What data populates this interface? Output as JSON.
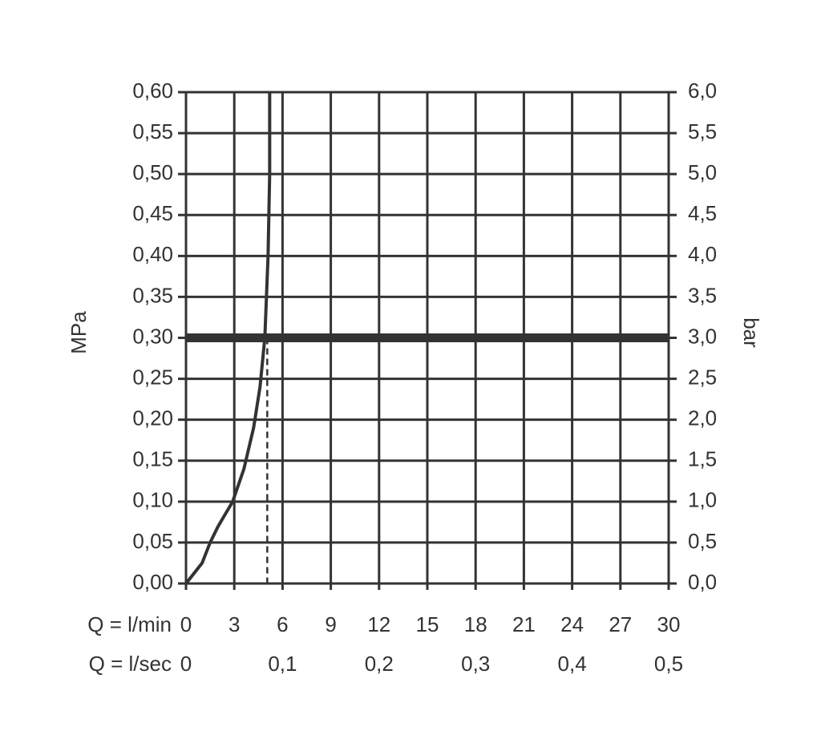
{
  "chart_data": {
    "type": "line",
    "x_label": "Q = l/min",
    "x2_label": "Q = l/sec",
    "y_label": "MPa",
    "y2_label": "bar",
    "x": [
      0,
      1,
      1.5,
      2,
      2.9,
      3.6,
      4.2,
      4.6,
      4.9,
      5.1,
      5.2,
      5.2
    ],
    "values": [
      0,
      0.025,
      0.05,
      0.07,
      0.1,
      0.14,
      0.19,
      0.24,
      0.3,
      0.4,
      0.5,
      0.6
    ],
    "color": "#333333",
    "reference_line": 0.3,
    "dashed_line": {
      "x": 5.05,
      "y": 0.3
    },
    "xlim": [
      0,
      30
    ],
    "xticks": [
      0,
      3,
      6,
      9,
      12,
      15,
      18,
      21,
      24,
      27,
      30
    ],
    "x2lim": [
      0,
      0.5
    ],
    "x2ticks": [
      0,
      {
        "value": 0.1,
        "label": "0,1"
      },
      {
        "value": 0.2,
        "label": "0,2"
      },
      {
        "value": 0.3,
        "label": "0,3"
      },
      {
        "value": 0.4,
        "label": "0,4"
      },
      {
        "value": 0.5,
        "label": "0,5"
      }
    ],
    "ylim": [
      0,
      0.6
    ],
    "yticks": [
      {
        "value": 0,
        "label": "0,00"
      },
      {
        "value": 0.05,
        "label": "0,05"
      },
      {
        "value": 0.1,
        "label": "0,10"
      },
      {
        "value": 0.15,
        "label": "0,15"
      },
      {
        "value": 0.2,
        "label": "0,20"
      },
      {
        "value": 0.25,
        "label": "0,25"
      },
      {
        "value": 0.3,
        "label": "0,30"
      },
      {
        "value": 0.35,
        "label": "0,35"
      },
      {
        "value": 0.4,
        "label": "0,40"
      },
      {
        "value": 0.45,
        "label": "0,45"
      },
      {
        "value": 0.5,
        "label": "0,50"
      },
      {
        "value": 0.55,
        "label": "0,55"
      },
      {
        "value": 0.6,
        "label": "0,60"
      }
    ],
    "y2lim": [
      0,
      6
    ],
    "y2ticks": [
      {
        "value": 0,
        "label": "0,0"
      },
      {
        "value": 0.5,
        "label": "0,5"
      },
      {
        "value": 1,
        "label": "1,0"
      },
      {
        "value": 1.5,
        "label": "1,5"
      },
      {
        "value": 2,
        "label": "2,0"
      },
      {
        "value": 2.5,
        "label": "2,5"
      },
      {
        "value": 3,
        "label": "3,0"
      },
      {
        "value": 3.5,
        "label": "3,5"
      },
      {
        "value": 4,
        "label": "4,0"
      },
      {
        "value": 4.5,
        "label": "4,5"
      },
      {
        "value": 5,
        "label": "5,0"
      },
      {
        "value": 5.5,
        "label": "5,5"
      },
      {
        "value": 6,
        "label": "6,0"
      }
    ],
    "grid": true
  }
}
